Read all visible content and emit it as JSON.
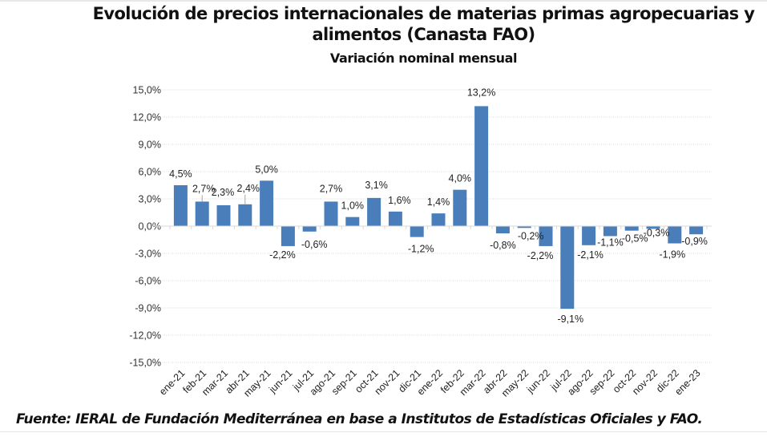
{
  "chart_data": {
    "type": "bar",
    "title": "Evolución de precios internacionales de materias primas agropecuarias y alimentos (Canasta FAO)",
    "title_lines": [
      "Evolución de precios internacionales de materias primas agropecuarias y",
      "alimentos (Canasta FAO)"
    ],
    "subtitle": "Variación nominal mensual",
    "xlabel": "",
    "ylabel": "",
    "ylim": [
      -15,
      15
    ],
    "yticks": [
      15,
      12,
      9,
      6,
      3,
      0,
      -3,
      -6,
      -9,
      -12,
      -15
    ],
    "ytick_labels": [
      "15,0%",
      "12,0%",
      "9,0%",
      "6,0%",
      "3,0%",
      "0,0%",
      "-3,0%",
      "-6,0%",
      "-9,0%",
      "-12,0%",
      "-15,0%"
    ],
    "grid": true,
    "legend": "none",
    "bar_color": "#4a7ebb",
    "categories": [
      "ene-21",
      "feb-21",
      "mar-21",
      "abr-21",
      "may-21",
      "jun-21",
      "jul-21",
      "ago-21",
      "sep-21",
      "oct-21",
      "nov-21",
      "dic-21",
      "ene-22",
      "feb-22",
      "mar-22",
      "abr-22",
      "may-22",
      "jun-22",
      "jul-22",
      "ago-22",
      "sep-22",
      "oct-22",
      "nov-22",
      "dic-22",
      "ene-23"
    ],
    "values": [
      4.5,
      2.7,
      2.3,
      2.4,
      5.0,
      -2.2,
      -0.6,
      2.7,
      1.0,
      3.1,
      1.6,
      -1.2,
      1.4,
      4.0,
      13.2,
      -0.8,
      -0.2,
      -2.2,
      -9.1,
      -2.1,
      -1.1,
      -0.5,
      -0.3,
      -1.9,
      -0.9
    ],
    "data_labels": [
      "4,5%",
      "2,7%",
      "2,3%",
      "2,4%",
      "5,0%",
      "-2,2%",
      "-0,6%",
      "2,7%",
      "1,0%",
      "3,1%",
      "1,6%",
      "-1,2%",
      "1,4%",
      "4,0%",
      "13,2%",
      "-0,8%",
      "-0,2%",
      "-2,2%",
      "-9,1%",
      "-2,1%",
      "-1,1%",
      "-0,5%",
      "-0,3%",
      "-1,9%",
      "-0,9%"
    ]
  },
  "source": "Fuente: IERAL de Fundación Mediterránea en base a Institutos de Estadísticas Oficiales y FAO."
}
